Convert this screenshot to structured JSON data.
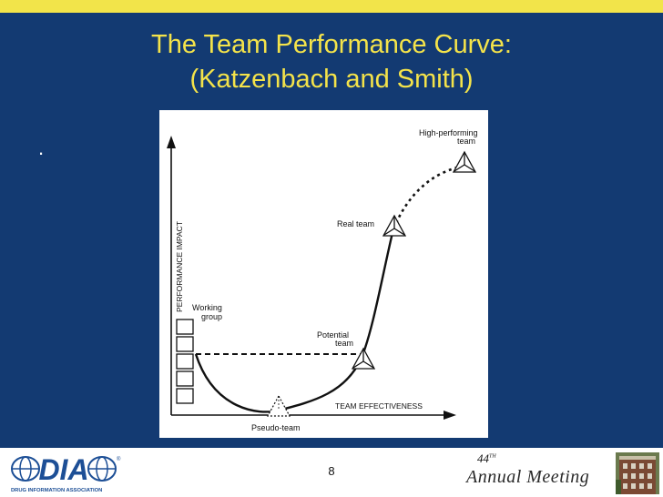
{
  "slide": {
    "title_line1": "The Team Performance Curve:",
    "title_line2": "(Katzenbach and Smith)",
    "bullet": ".",
    "page_number": "8"
  },
  "figure": {
    "y_axis_label": "PERFORMANCE IMPACT",
    "x_axis_label": "TEAM EFFECTIVENESS",
    "stages": {
      "working_group": [
        "Working",
        "group"
      ],
      "pseudo_team": "Pseudo-team",
      "potential_team": [
        "Potential",
        "team"
      ],
      "real_team": "Real team",
      "high_performing_team": [
        "High-performing",
        "team"
      ]
    }
  },
  "footer": {
    "logo_text": "DIA",
    "logo_registered": "®",
    "logo_caption": "DRUG INFORMATION ASSOCIATION",
    "meeting_number": "44",
    "meeting_suffix": "TH",
    "meeting_name": "Annual Meeting"
  },
  "colors": {
    "background": "#133a72",
    "title": "#f4e34a",
    "stripe": "#f2e44a",
    "logo_blue": "#1d4f96"
  }
}
